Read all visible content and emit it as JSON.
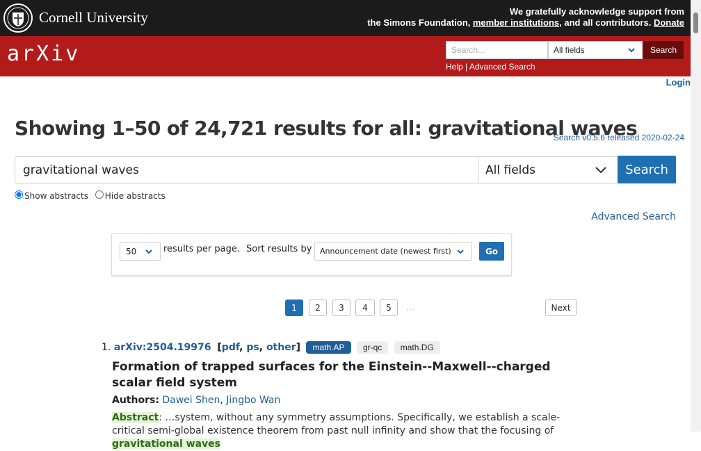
{
  "header": {
    "brand": "Cornell University",
    "support_line1": "We gratefully acknowledge support from",
    "support_prefix": "the Simons Foundation,",
    "member_link": "member institutions",
    "support_suffix": ", and all contributors.",
    "donate": "Donate"
  },
  "nav": {
    "logo": "arXiv",
    "search_placeholder": "Search...",
    "field": "All fields",
    "button": "Search",
    "help": "Help",
    "separator": "|",
    "advanced": "Advanced Search",
    "login": "Login"
  },
  "title": "Showing 1–50 of 24,721 results for all: gravitational waves",
  "version": "Search v0.5.6 released 2020-02-24",
  "search": {
    "query": "gravitational waves",
    "field": "All fields",
    "button": "Search",
    "show_abstracts": "Show abstracts",
    "hide_abstracts": "Hide abstracts",
    "advanced": "Advanced Search"
  },
  "controls": {
    "per_page": "50",
    "per_page_label": "results per page.",
    "sort_label": "Sort results by",
    "sort": "Announcement date (newest first)",
    "go": "Go"
  },
  "pagination": {
    "pages": [
      "1",
      "2",
      "3",
      "4",
      "5"
    ],
    "ellipsis": "…",
    "next": "Next"
  },
  "results": [
    {
      "index": "1.",
      "id": "arXiv:2504.19976",
      "open": "[",
      "links": [
        "pdf",
        "ps",
        "other"
      ],
      "link_separator": ", ",
      "close": "]",
      "tags": [
        "math.AP",
        "gr-qc",
        "math.DG"
      ],
      "title": "Formation of trapped surfaces for the Einstein--Maxwell--charged scalar field system",
      "authors_label": "Authors:",
      "authors": [
        "Dawei Shen",
        "Jingbo Wan"
      ],
      "author_separator": ", ",
      "abstract_label": "Abstract",
      "abstract": ": …system, without any symmetry assumptions. Specifically, we establish a scale-critical semi-global existence theorem from past null infinity and show that the focusing of ",
      "highlight": "gravitational waves"
    }
  ]
}
